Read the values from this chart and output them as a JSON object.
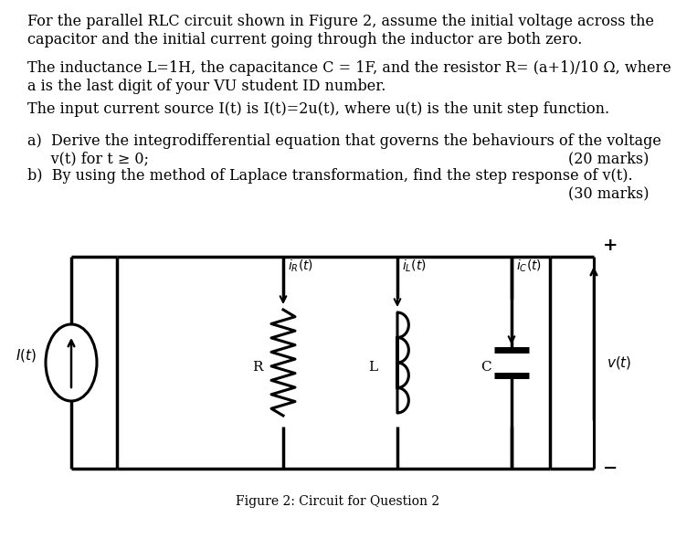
{
  "bg_color": "#ffffff",
  "fig_width": 7.4,
  "fig_height": 6.01,
  "p1": "For the parallel RLC circuit shown in Figure 2, assume the initial voltage across the\ncapacitor and the initial current going through the inductor are both zero.",
  "p2a": "The inductance ",
  "p2b": "L=1H",
  "p2c": ", the capacitance ",
  "p2d": "C = 1F",
  "p2e": ", and the resistor ",
  "p2f": "R= (a+1)/10 Ω",
  "p2g": ", where",
  "p2h": "a",
  "p2i": " is the last digit of your VU student ID number.",
  "p3a": "The input current source ",
  "p3b": "I(t)",
  "p3c": " is ",
  "p3d": "I(t)=2u(t)",
  "p3e": ", where ",
  "p3f": "u(t)",
  "p3g": " is the unit step function.",
  "qa1": "a)  Derive the integrodifferential equation that governs the behaviours of the voltage",
  "qa2": "     v(t) for t ≥ 0;",
  "qam": "(20 marks)",
  "qb1": "b)  By using the method of Laplace transformation, find the step response of ",
  "qb1u": "v(t)",
  "qb1end": ".",
  "qbm": "(30 marks)",
  "caption": "Figure 2: Circuit for Question 2",
  "fs": 11.5,
  "fc": 10
}
